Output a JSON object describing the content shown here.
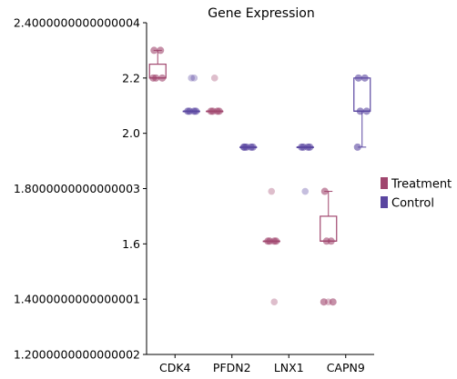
{
  "chart_data": {
    "type": "box",
    "title": "Gene Expression",
    "xlabel": "",
    "ylabel": "",
    "categories": [
      "CDK4",
      "PFDN2",
      "LNX1",
      "CAPN9"
    ],
    "ylim": [
      1.2,
      2.4
    ],
    "yticks": [
      {
        "value": 1.2,
        "label": "1.2000000000000002"
      },
      {
        "value": 1.4,
        "label": "1.4000000000000001"
      },
      {
        "value": 1.6,
        "label": "1.6"
      },
      {
        "value": 1.8,
        "label": "1.8000000000000003"
      },
      {
        "value": 2.0,
        "label": "2.0"
      },
      {
        "value": 2.2,
        "label": "2.2"
      },
      {
        "value": 2.4,
        "label": "2.4000000000000004"
      }
    ],
    "legend": {
      "placement": "right"
    },
    "series": [
      {
        "name": "Treatment",
        "color": "#a0466e",
        "boxes": [
          {
            "q1": 2.2,
            "median": 2.2,
            "q3": 2.25,
            "whisker_low": 2.2,
            "whisker_high": 2.3,
            "points": [
              2.3,
              2.3,
              2.2,
              2.2,
              2.2
            ],
            "outliers": []
          },
          {
            "q1": 2.08,
            "median": 2.08,
            "q3": 2.08,
            "whisker_low": 2.08,
            "whisker_high": 2.08,
            "points": [
              2.08,
              2.08,
              2.08,
              2.08
            ],
            "outliers": [
              2.2
            ]
          },
          {
            "q1": 1.61,
            "median": 1.61,
            "q3": 1.61,
            "whisker_low": 1.61,
            "whisker_high": 1.61,
            "points": [
              1.61,
              1.61,
              1.61,
              1.61
            ],
            "outliers": [
              1.79,
              1.39
            ]
          },
          {
            "q1": 1.61,
            "median": 1.61,
            "q3": 1.7,
            "whisker_low": 1.61,
            "whisker_high": 1.79,
            "points": [
              1.79,
              1.61,
              1.61,
              1.39,
              1.39
            ],
            "outliers": [
              1.39
            ]
          }
        ]
      },
      {
        "name": "Control",
        "color": "#5a46a0",
        "boxes": [
          {
            "q1": 2.08,
            "median": 2.08,
            "q3": 2.08,
            "whisker_low": 2.08,
            "whisker_high": 2.08,
            "points": [
              2.08,
              2.08,
              2.08,
              2.08
            ],
            "outliers": [
              2.2,
              2.2
            ]
          },
          {
            "q1": 1.95,
            "median": 1.95,
            "q3": 1.95,
            "whisker_low": 1.95,
            "whisker_high": 1.95,
            "points": [
              1.95,
              1.95,
              1.95,
              1.95,
              1.95
            ],
            "outliers": []
          },
          {
            "q1": 1.95,
            "median": 1.95,
            "q3": 1.95,
            "whisker_low": 1.95,
            "whisker_high": 1.95,
            "points": [
              1.95,
              1.95,
              1.95,
              1.95
            ],
            "outliers": [
              1.79
            ]
          },
          {
            "q1": 2.08,
            "median": 2.08,
            "q3": 2.2,
            "whisker_low": 1.95,
            "whisker_high": 2.2,
            "points": [
              2.2,
              2.2,
              2.08,
              2.08,
              1.95
            ],
            "outliers": []
          }
        ]
      }
    ]
  }
}
